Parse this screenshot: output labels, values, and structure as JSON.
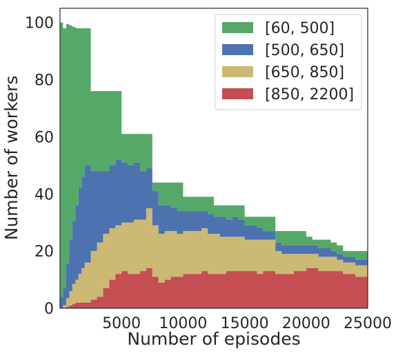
{
  "chart_data": {
    "type": "area",
    "stacked": true,
    "xlabel": "Number of episodes",
    "ylabel": "Number of workers",
    "xlim": [
      0,
      25000
    ],
    "ylim": [
      0,
      105
    ],
    "xticks": [
      5000,
      10000,
      15000,
      20000,
      25000
    ],
    "yticks": [
      0,
      20,
      40,
      60,
      80,
      100
    ],
    "grid": false,
    "legend_position": "top-right",
    "x": [
      0,
      250,
      500,
      750,
      1000,
      1250,
      1500,
      1750,
      2000,
      2500,
      3000,
      3500,
      4000,
      4500,
      5000,
      5500,
      6000,
      6500,
      7000,
      7500,
      8000,
      8500,
      9000,
      9500,
      10000,
      10500,
      11000,
      11500,
      12000,
      12500,
      13000,
      13500,
      14000,
      14500,
      15000,
      15500,
      16000,
      16500,
      17000,
      17500,
      18000,
      18500,
      19000,
      19500,
      20000,
      20500,
      21000,
      21500,
      22000,
      22500,
      23000,
      23500,
      24000,
      24500,
      25000
    ],
    "series": [
      {
        "name": "[850, 2200]",
        "color": "#c44e52",
        "values": [
          0,
          0,
          0.5,
          1,
          1.5,
          2,
          2,
          2,
          2,
          3,
          4,
          7,
          10,
          12,
          13,
          12,
          12,
          13,
          14,
          11,
          9,
          10,
          11,
          11,
          12,
          12,
          12,
          13,
          12,
          12,
          12,
          13,
          13,
          13,
          13,
          13,
          12,
          13,
          13,
          12,
          12,
          12,
          13,
          13,
          14,
          14,
          13,
          13,
          13,
          13,
          12,
          12,
          11,
          11,
          11
        ]
      },
      {
        "name": "[650, 850]",
        "color": "#ccb974",
        "values": [
          0,
          1,
          3,
          5,
          7,
          8,
          10,
          12,
          14,
          17,
          19,
          19,
          18,
          17,
          17,
          18,
          19,
          18,
          21,
          18,
          17,
          17,
          16,
          15,
          15,
          15,
          15,
          15,
          14,
          14,
          13,
          12,
          12,
          12,
          11,
          11,
          12,
          11,
          11,
          8,
          7,
          7,
          6,
          6,
          5,
          5,
          5,
          5,
          5,
          4,
          4,
          4,
          4,
          4,
          5
        ]
      },
      {
        "name": "[500, 650]",
        "color": "#4c72b0",
        "values": [
          4,
          6,
          12,
          18,
          22,
          26,
          30,
          32,
          34,
          28,
          25,
          22,
          22,
          23,
          21,
          20,
          20,
          17,
          14,
          12,
          10,
          9,
          8,
          8,
          7,
          7,
          7,
          6,
          7,
          6,
          7,
          6,
          7,
          6,
          5,
          5,
          4,
          3,
          3,
          3,
          3,
          3,
          3,
          3,
          3,
          3,
          3,
          3,
          2,
          2,
          2,
          2,
          2,
          2,
          2
        ]
      },
      {
        "name": "[60, 500]",
        "color": "#55a868",
        "values": [
          96,
          91,
          84,
          75,
          68,
          62,
          56,
          52,
          48,
          28,
          28,
          28,
          26,
          24,
          10,
          11,
          10,
          13,
          12,
          3,
          8,
          8,
          9,
          10,
          5,
          5,
          5,
          5,
          6,
          4,
          4,
          5,
          4,
          5,
          3,
          3,
          4,
          5,
          5,
          4,
          5,
          5,
          5,
          5,
          3,
          2,
          3,
          3,
          3,
          3,
          2,
          2,
          3,
          3,
          4
        ]
      }
    ]
  }
}
